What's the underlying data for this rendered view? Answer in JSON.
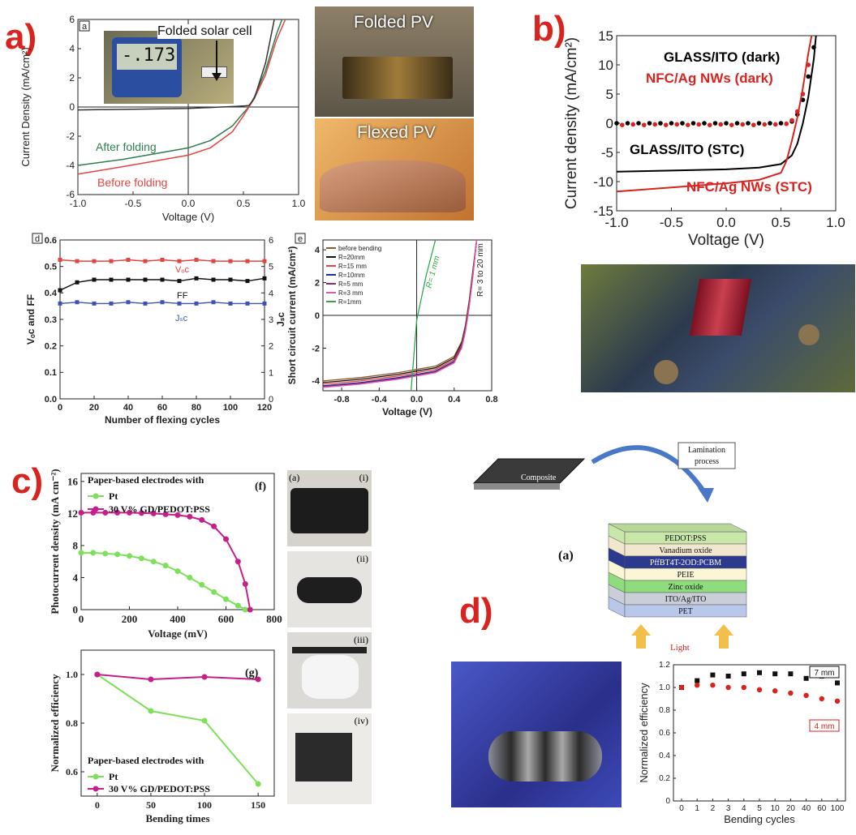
{
  "labels": {
    "a": "a)",
    "b": "b)",
    "c": "c)",
    "d": "d)"
  },
  "photos": {
    "folded_pv": "Folded PV",
    "flexed_pv": "Flexed PV",
    "multimeter": "-.173",
    "folded_solar_cell": "Folded solar cell",
    "sub_a": "(a)",
    "sub_i": "(i)",
    "sub_ii": "(ii)",
    "sub_iii": "(iii)",
    "sub_iv": "(iv)"
  },
  "diagram": {
    "composite": "Composite",
    "lamination": [
      "Lamination",
      "process"
    ],
    "label": "(a)",
    "light": "Light",
    "layers": [
      "PEDOT:PSS",
      "Vanadium oxide",
      "PffBT4T-2OD:PCBM",
      "PEIE",
      "Zinc oxide",
      "ITO/Ag/ITO",
      "PET"
    ],
    "layer_colors": [
      "#c9e7a8",
      "#f1e7cf",
      "#2b3a8f",
      "#fbf6d6",
      "#8fdc7e",
      "#c9ced8",
      "#b9c8ea"
    ]
  },
  "chart_data": [
    {
      "id": "a",
      "type": "line",
      "panel_tag": "a",
      "xlabel": "Voltage (V)",
      "ylabel": "Current Density (mA/cm²)",
      "xlim": [
        -1.0,
        1.0
      ],
      "ylim": [
        -6,
        6
      ],
      "xticks": [
        "-1.0",
        "-0.5",
        "0.0",
        "0.5",
        "1.0"
      ],
      "yticks": [
        "-6",
        "-4",
        "-2",
        "0",
        "2",
        "4",
        "6"
      ],
      "series": [
        {
          "name": "After folding",
          "color": "#2e7d4f",
          "x": [
            -1,
            -0.6,
            -0.3,
            0,
            0.2,
            0.4,
            0.5,
            0.55,
            0.6,
            0.7,
            0.8,
            0.85
          ],
          "y": [
            -4.0,
            -3.6,
            -3.2,
            -2.8,
            -2.3,
            -1.3,
            -0.4,
            0,
            0.7,
            2.5,
            5.0,
            6.0
          ]
        },
        {
          "name": "Before folding",
          "color": "#e0453f",
          "x": [
            -1,
            -0.6,
            -0.3,
            0,
            0.2,
            0.4,
            0.5,
            0.55,
            0.6,
            0.7,
            0.8,
            0.88
          ],
          "y": [
            -4.6,
            -4.1,
            -3.7,
            -3.3,
            -2.8,
            -1.7,
            -0.6,
            0,
            0.6,
            2.2,
            4.6,
            6.0
          ]
        },
        {
          "name": "",
          "color": "#333",
          "x": [
            -1,
            -0.5,
            0,
            0.3,
            0.45,
            0.55,
            0.6,
            0.7,
            0.78
          ],
          "y": [
            -0.2,
            -0.15,
            -0.1,
            0,
            0.05,
            0.1,
            0.6,
            3.0,
            6.0
          ]
        }
      ]
    },
    {
      "id": "b",
      "type": "line",
      "xlabel": "Voltage (V)",
      "ylabel": "Current density (mA/cm²)",
      "xlim": [
        -1.0,
        1.0
      ],
      "ylim": [
        -15,
        15
      ],
      "xticks": [
        "-1.0",
        "-0.5",
        "0.0",
        "0.5",
        "1.0"
      ],
      "yticks": [
        "-15",
        "-10",
        "-5",
        "0",
        "5",
        "10",
        "15"
      ],
      "annotations": [
        "GLASS/ITO (dark)",
        "NFC/Ag NWs (dark)",
        "GLASS/ITO (STC)",
        "NFC/Ag NWs (STC)"
      ],
      "series": [
        {
          "name": "GLASS/ITO (dark)",
          "color": "#000",
          "style": "dots",
          "x": [
            -1,
            -0.9,
            -0.8,
            -0.7,
            -0.6,
            -0.5,
            -0.4,
            -0.3,
            -0.2,
            -0.1,
            0,
            0.1,
            0.2,
            0.3,
            0.4,
            0.5,
            0.6,
            0.65,
            0.7,
            0.75,
            0.8
          ],
          "y": [
            0,
            0,
            0,
            0,
            0,
            0,
            0,
            0,
            0,
            0,
            0,
            0,
            0,
            0,
            0,
            0,
            0.3,
            1.5,
            4,
            8,
            13
          ]
        },
        {
          "name": "NFC/Ag NWs (dark)",
          "color": "#d8231f",
          "style": "dots",
          "x": [
            -0.95,
            -0.85,
            -0.75,
            -0.65,
            -0.55,
            -0.45,
            -0.35,
            -0.25,
            -0.15,
            -0.05,
            0.05,
            0.15,
            0.25,
            0.35,
            0.45,
            0.55,
            0.6,
            0.65,
            0.7,
            0.75
          ],
          "y": [
            -0.3,
            -0.2,
            -0.3,
            -0.2,
            -0.3,
            -0.2,
            -0.3,
            -0.2,
            -0.3,
            -0.2,
            -0.3,
            -0.2,
            -0.3,
            -0.2,
            -0.2,
            -0.1,
            0.5,
            2,
            5,
            10
          ]
        },
        {
          "name": "GLASS/ITO (STC)",
          "color": "#000",
          "style": "line",
          "x": [
            -1,
            -0.5,
            0,
            0.3,
            0.5,
            0.6,
            0.65,
            0.7,
            0.75,
            0.8,
            0.82
          ],
          "y": [
            -8.3,
            -8.1,
            -7.9,
            -7.6,
            -7.0,
            -5.5,
            -3.5,
            0,
            4.5,
            11,
            15
          ]
        },
        {
          "name": "NFC/Ag NWs (STC)",
          "color": "#d8231f",
          "style": "line",
          "x": [
            -1,
            -0.5,
            0,
            0.3,
            0.5,
            0.55,
            0.6,
            0.65,
            0.7,
            0.75,
            0.78
          ],
          "y": [
            -11.7,
            -11.0,
            -10.3,
            -9.7,
            -8.5,
            -6.5,
            -3,
            1,
            6,
            12,
            15
          ]
        }
      ]
    },
    {
      "id": "d_left",
      "type": "line",
      "panel_tag": "d",
      "xlabel": "Number of flexing cycles",
      "ylabel": "Vₒc and FF",
      "ylabel2": "Jₛc",
      "xlim": [
        0,
        120
      ],
      "ylim": [
        0,
        0.6
      ],
      "y2lim": [
        0,
        6
      ],
      "xticks": [
        "0",
        "20",
        "40",
        "60",
        "80",
        "100",
        "120"
      ],
      "yticks": [
        "0.0",
        "0.1",
        "0.2",
        "0.3",
        "0.4",
        "0.5",
        "0.6"
      ],
      "y2ticks": [
        "0",
        "1",
        "2",
        "3",
        "4",
        "5",
        "6"
      ],
      "annotations": [
        "Vₒc",
        "FF",
        "Jₛc"
      ],
      "series": [
        {
          "name": "Voc",
          "color": "#e0453f",
          "x": [
            0,
            10,
            20,
            30,
            40,
            50,
            60,
            70,
            80,
            90,
            100,
            110,
            120
          ],
          "y": [
            0.525,
            0.52,
            0.52,
            0.52,
            0.525,
            0.52,
            0.525,
            0.52,
            0.525,
            0.52,
            0.52,
            0.52,
            0.52
          ]
        },
        {
          "name": "FF",
          "color": "#111",
          "x": [
            0,
            10,
            20,
            30,
            40,
            50,
            60,
            70,
            80,
            90,
            100,
            110,
            120
          ],
          "y": [
            0.41,
            0.44,
            0.45,
            0.45,
            0.45,
            0.45,
            0.45,
            0.445,
            0.455,
            0.45,
            0.45,
            0.445,
            0.455
          ]
        },
        {
          "name": "Jsc",
          "color": "#3f51b5",
          "x": [
            0,
            10,
            20,
            30,
            40,
            50,
            60,
            70,
            80,
            90,
            100,
            110,
            120
          ],
          "y": [
            0.36,
            0.365,
            0.36,
            0.36,
            0.365,
            0.36,
            0.365,
            0.36,
            0.36,
            0.365,
            0.36,
            0.36,
            0.36
          ]
        }
      ]
    },
    {
      "id": "e",
      "type": "line",
      "panel_tag": "e",
      "xlabel": "Voltage (V)",
      "ylabel": "Short circuit current (mA/cm²)",
      "xlim": [
        -1.0,
        0.8
      ],
      "ylim": [
        -4.6,
        4.6
      ],
      "xticks": [
        "-0.8",
        "-0.4",
        "0.0",
        "0.4",
        "0.8"
      ],
      "yticks": [
        "-4",
        "-2",
        "0",
        "2",
        "4"
      ],
      "annotations": [
        "R= 1 mm",
        "R= 3 to 20 mm"
      ],
      "legend": [
        "before bending",
        "R=20mm",
        "R=15 mm",
        "R=10mm",
        "R=5 mm",
        "R=3 mm",
        "R=1mm"
      ],
      "series": [
        {
          "name": "before bending",
          "color": "#8b5a2b",
          "x": [
            -1.0,
            -0.6,
            -0.2,
            0.2,
            0.4,
            0.48,
            0.52,
            0.56,
            0.6,
            0.64
          ],
          "y": [
            -4.0,
            -3.8,
            -3.5,
            -3.1,
            -2.5,
            -1.6,
            -0.6,
            0.9,
            2.8,
            4.6
          ]
        },
        {
          "name": "R=20mm",
          "color": "#111",
          "x": [
            -1.0,
            -0.6,
            -0.2,
            0.2,
            0.4,
            0.48,
            0.52,
            0.56,
            0.6,
            0.64
          ],
          "y": [
            -4.1,
            -3.9,
            -3.6,
            -3.2,
            -2.6,
            -1.7,
            -0.7,
            0.8,
            2.7,
            4.6
          ]
        },
        {
          "name": "R=15 mm",
          "color": "#e0453f",
          "x": [
            -1.0,
            -0.6,
            -0.2,
            0.2,
            0.4,
            0.48,
            0.52,
            0.56,
            0.6,
            0.64
          ],
          "y": [
            -4.2,
            -4.0,
            -3.7,
            -3.3,
            -2.7,
            -1.8,
            -0.8,
            0.7,
            2.6,
            4.6
          ]
        },
        {
          "name": "R=10mm",
          "color": "#1e2c9b",
          "x": [
            -1.0,
            -0.6,
            -0.2,
            0.2,
            0.4,
            0.48,
            0.52,
            0.56,
            0.6,
            0.64
          ],
          "y": [
            -4.3,
            -4.1,
            -3.8,
            -3.4,
            -2.8,
            -1.9,
            -0.9,
            0.6,
            2.5,
            4.6
          ]
        },
        {
          "name": "R=5 mm",
          "color": "#8e2c6f",
          "x": [
            -1.0,
            -0.6,
            -0.2,
            0.2,
            0.4,
            0.48,
            0.52,
            0.56,
            0.6,
            0.64
          ],
          "y": [
            -4.35,
            -4.15,
            -3.85,
            -3.45,
            -2.85,
            -1.95,
            -0.95,
            0.55,
            2.45,
            4.6
          ]
        },
        {
          "name": "R=3 mm",
          "color": "#e05bb0",
          "x": [
            -1.0,
            -0.6,
            -0.2,
            0.2,
            0.4,
            0.48,
            0.52,
            0.56,
            0.6,
            0.64
          ],
          "y": [
            -4.4,
            -4.2,
            -3.9,
            -3.5,
            -2.9,
            -2.0,
            -1.0,
            0.5,
            2.4,
            4.6
          ]
        },
        {
          "name": "R=1mm",
          "color": "#2ea84a",
          "x": [
            -0.06,
            0.0,
            0.1,
            0.2
          ],
          "y": [
            -4.6,
            -0.3,
            2.4,
            4.6
          ]
        }
      ]
    },
    {
      "id": "f",
      "type": "line",
      "panel_tag": "(f)",
      "xlabel": "Voltage (mV)",
      "ylabel": "Photocurrent density (mA cm⁻²)",
      "xlim": [
        0,
        800
      ],
      "ylim": [
        0,
        17
      ],
      "xticks": [
        "0",
        "200",
        "400",
        "600",
        "800"
      ],
      "yticks": [
        "0",
        "4",
        "8",
        "12",
        "16"
      ],
      "legend_title": "Paper-based electrodes with",
      "series": [
        {
          "name": "Pt",
          "color": "#7ee05a",
          "x": [
            0,
            50,
            100,
            150,
            200,
            250,
            300,
            350,
            400,
            450,
            500,
            550,
            600,
            650,
            680
          ],
          "y": [
            7.1,
            7.1,
            7.0,
            6.9,
            6.7,
            6.4,
            6.0,
            5.5,
            4.8,
            4.0,
            3.1,
            2.2,
            1.3,
            0.5,
            0
          ]
        },
        {
          "name": "30 V% GD/PEDOT:PSS",
          "color": "#c71f8a",
          "x": [
            0,
            50,
            100,
            150,
            200,
            250,
            300,
            350,
            400,
            450,
            500,
            550,
            600,
            650,
            680,
            700
          ],
          "y": [
            12.1,
            12.1,
            12.1,
            12.1,
            12.1,
            12.05,
            12.0,
            11.9,
            11.8,
            11.6,
            11.2,
            10.4,
            8.8,
            6.0,
            3.2,
            0
          ]
        }
      ]
    },
    {
      "id": "g",
      "type": "line",
      "panel_tag": "(g)",
      "xlabel": "Bending times",
      "ylabel": "Normalized efficiency",
      "xlim": [
        -15,
        165
      ],
      "ylim": [
        0.5,
        1.1
      ],
      "xticks": [
        "0",
        "50",
        "100",
        "150"
      ],
      "yticks": [
        "0.6",
        "0.8",
        "1.0"
      ],
      "legend_title": "Paper-based electrodes with",
      "series": [
        {
          "name": "Pt",
          "color": "#7ee05a",
          "x": [
            0,
            50,
            100,
            150
          ],
          "y": [
            1.0,
            0.85,
            0.81,
            0.55
          ]
        },
        {
          "name": "30 V% GD/PEDOT:PSS",
          "color": "#c71f8a",
          "x": [
            0,
            50,
            100,
            150
          ],
          "y": [
            1.0,
            0.98,
            0.99,
            0.98
          ]
        }
      ]
    },
    {
      "id": "h",
      "type": "scatter",
      "xlabel": "Bending cycles",
      "ylabel": "Normalized efficiency",
      "categories": [
        "0",
        "1",
        "2",
        "3",
        "4",
        "5",
        "10",
        "20",
        "40",
        "60",
        "100"
      ],
      "ylim": [
        0,
        1.2
      ],
      "yticks": [
        "0",
        "0.2",
        "0.4",
        "0.6",
        "0.8",
        "1.0",
        "1.2"
      ],
      "annotations": [
        "7 mm",
        "4 mm"
      ],
      "series": [
        {
          "name": "7 mm",
          "color": "#111",
          "values": [
            1.0,
            1.06,
            1.11,
            1.1,
            1.12,
            1.13,
            1.12,
            1.12,
            1.08,
            1.1,
            1.04
          ]
        },
        {
          "name": "4 mm",
          "color": "#d8231f",
          "values": [
            1.0,
            1.02,
            1.02,
            1.0,
            1.0,
            0.98,
            0.97,
            0.95,
            0.93,
            0.9,
            0.88
          ]
        }
      ]
    }
  ]
}
